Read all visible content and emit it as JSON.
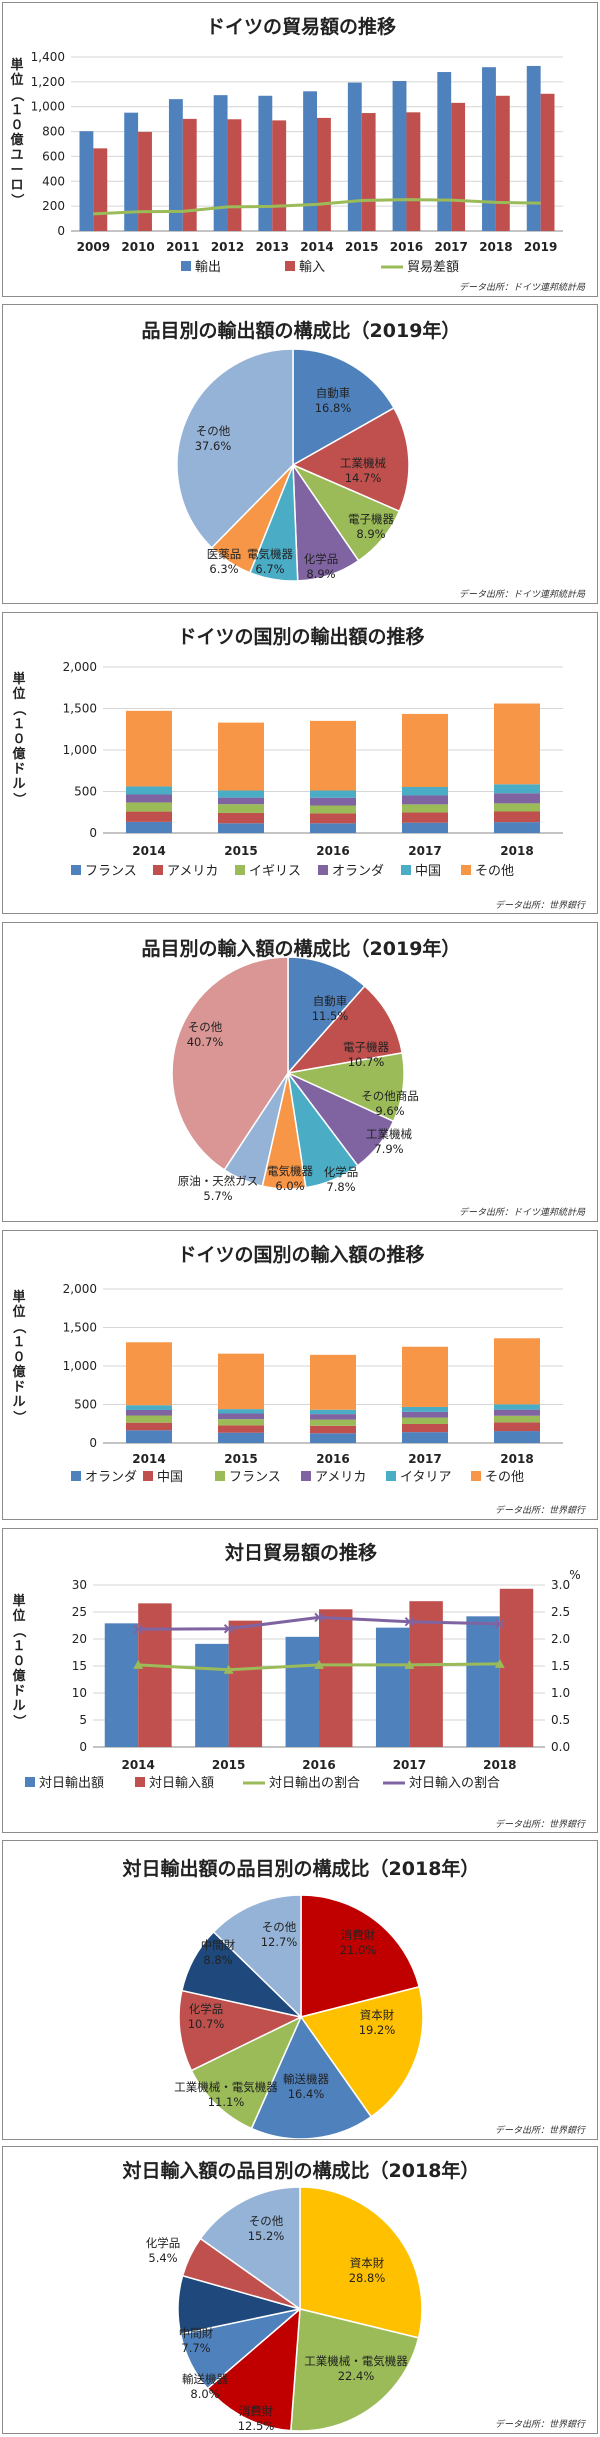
{
  "chart_data": [
    {
      "id": "c1",
      "type": "bar",
      "title": "ドイツの貿易額の推移",
      "ylabel": "単位（１０億ユーロ）",
      "source": "データ出所：ドイツ連邦統計局",
      "categories": [
        "2009",
        "2010",
        "2011",
        "2012",
        "2013",
        "2014",
        "2015",
        "2016",
        "2017",
        "2018",
        "2019"
      ],
      "ylim": [
        0,
        1400
      ],
      "yticks": [
        "0",
        "200",
        "400",
        "600",
        "800",
        "1,000",
        "1,200",
        "1,400"
      ],
      "series": [
        {
          "name": "輸出",
          "kind": "bar",
          "color": "#4f81bd",
          "values": [
            803,
            952,
            1061,
            1093,
            1088,
            1124,
            1194,
            1207,
            1279,
            1318,
            1328
          ]
        },
        {
          "name": "輸入",
          "kind": "bar",
          "color": "#c0504d",
          "values": [
            665,
            797,
            902,
            899,
            890,
            910,
            949,
            955,
            1031,
            1088,
            1104
          ]
        },
        {
          "name": "貿易差額",
          "kind": "line",
          "color": "#9bbb59",
          "values": [
            138,
            155,
            158,
            194,
            198,
            214,
            245,
            252,
            248,
            230,
            224
          ]
        }
      ],
      "grid": true,
      "legend": "bottom"
    },
    {
      "id": "c2",
      "type": "pie",
      "title": "品目別の輸出額の構成比（2019年）",
      "source": "データ出所：ドイツ連邦統計局",
      "slices": [
        {
          "name": "自動車",
          "pct": "16.8%",
          "value": 16.8,
          "color": "#4f81bd"
        },
        {
          "name": "工業機械",
          "pct": "14.7%",
          "value": 14.7,
          "color": "#c0504d"
        },
        {
          "name": "電子機器",
          "pct": "8.9%",
          "value": 8.9,
          "color": "#9bbb59"
        },
        {
          "name": "化学品",
          "pct": "8.9%",
          "value": 8.9,
          "color": "#8064a2"
        },
        {
          "name": "電気機器",
          "pct": "6.7%",
          "value": 6.7,
          "color": "#4bacc6"
        },
        {
          "name": "医薬品",
          "pct": "6.3%",
          "value": 6.3,
          "color": "#f79646"
        },
        {
          "name": "その他",
          "pct": "37.6%",
          "value": 37.6,
          "color": "#95b3d7"
        }
      ]
    },
    {
      "id": "c3",
      "type": "bar",
      "title": "ドイツの国別の輸出額の推移",
      "ylabel": "単位（１０億ドル）",
      "source": "データ出所：世界銀行",
      "categories": [
        "2014",
        "2015",
        "2016",
        "2017",
        "2018"
      ],
      "ylim": [
        0,
        2000
      ],
      "yticks": [
        "0",
        "500",
        "1,000",
        "1,500",
        "2,000"
      ],
      "series": [
        {
          "name": "フランス",
          "color": "#4f81bd",
          "values": [
            134,
            117,
            117,
            124,
            131
          ]
        },
        {
          "name": "アメリカ",
          "color": "#c0504d",
          "values": [
            124,
            125,
            119,
            124,
            128
          ]
        },
        {
          "name": "イギリス",
          "color": "#9bbb59",
          "values": [
            110,
            105,
            95,
            97,
            98
          ]
        },
        {
          "name": "オランダ",
          "color": "#8064a2",
          "values": [
            96,
            79,
            94,
            107,
            122
          ]
        },
        {
          "name": "中国",
          "color": "#4bacc6",
          "values": [
            97,
            86,
            87,
            102,
            108
          ]
        },
        {
          "name": "その他",
          "color": "#f79646",
          "values": [
            911,
            818,
            839,
            881,
            973
          ]
        }
      ],
      "grid": true,
      "legend": "bottom"
    },
    {
      "id": "c4",
      "type": "pie",
      "title": "品目別の輸入額の構成比（2019年）",
      "source": "データ出所：ドイツ連邦統計局",
      "slices": [
        {
          "name": "自動車",
          "pct": "11.5%",
          "value": 11.5,
          "color": "#4f81bd"
        },
        {
          "name": "電子機器",
          "pct": "10.7%",
          "value": 10.7,
          "color": "#c0504d"
        },
        {
          "name": "その他商品",
          "pct": "9.6%",
          "value": 9.6,
          "color": "#9bbb59"
        },
        {
          "name": "工業機械",
          "pct": "7.9%",
          "value": 7.9,
          "color": "#8064a2"
        },
        {
          "name": "化学品",
          "pct": "7.8%",
          "value": 7.8,
          "color": "#4bacc6"
        },
        {
          "name": "電気機器",
          "pct": "6.0%",
          "value": 6.0,
          "color": "#f79646"
        },
        {
          "name": "原油・天然ガス",
          "pct": "5.7%",
          "value": 5.7,
          "color": "#95b3d7"
        },
        {
          "name": "その他",
          "pct": "40.7%",
          "value": 40.7,
          "color": "#d99694"
        }
      ]
    },
    {
      "id": "c5",
      "type": "bar",
      "title": "ドイツの国別の輸入額の推移",
      "ylabel": "単位（１０億ドル）",
      "source": "データ出所：世界銀行",
      "categories": [
        "2014",
        "2015",
        "2016",
        "2017",
        "2018"
      ],
      "ylim": [
        0,
        2000
      ],
      "yticks": [
        "0",
        "500",
        "1,000",
        "1,500",
        "2,000"
      ],
      "series": [
        {
          "name": "オランダ",
          "color": "#4f81bd",
          "values": [
            165,
            134,
            126,
            141,
            155
          ]
        },
        {
          "name": "中国",
          "color": "#c0504d",
          "values": [
            99,
            96,
            98,
            106,
            113
          ]
        },
        {
          "name": "フランス",
          "color": "#9bbb59",
          "values": [
            93,
            80,
            80,
            83,
            86
          ]
        },
        {
          "name": "アメリカ",
          "color": "#8064a2",
          "values": [
            72,
            73,
            71,
            75,
            79
          ]
        },
        {
          "name": "イタリア",
          "color": "#4bacc6",
          "values": [
            62,
            57,
            57,
            63,
            69
          ]
        },
        {
          "name": "その他",
          "color": "#f79646",
          "values": [
            817,
            720,
            713,
            782,
            858
          ]
        }
      ],
      "grid": true,
      "legend": "bottom"
    },
    {
      "id": "c6",
      "type": "bar",
      "title": "対日貿易額の推移",
      "ylabel": "単位（１０億ドル）",
      "y2unit": "%",
      "source": "データ出所：世界銀行",
      "categories": [
        "2014",
        "2015",
        "2016",
        "2017",
        "2018"
      ],
      "ylim": [
        0,
        30
      ],
      "yticks": [
        "0",
        "5",
        "10",
        "15",
        "20",
        "25",
        "30"
      ],
      "y2lim": [
        0,
        3
      ],
      "y2ticks": [
        "0.0",
        "0.5",
        "1.0",
        "1.5",
        "2.0",
        "2.5",
        "3.0"
      ],
      "series": [
        {
          "name": "対日輸出額",
          "kind": "bar",
          "color": "#4f81bd",
          "values": [
            22.9,
            19.1,
            20.4,
            22.1,
            24.2
          ]
        },
        {
          "name": "対日輸入額",
          "kind": "bar",
          "color": "#c0504d",
          "values": [
            26.6,
            23.4,
            25.5,
            27.0,
            29.3
          ]
        },
        {
          "name": "対日輸出の割合",
          "kind": "line",
          "axis": "right",
          "color": "#9bbb59",
          "values": [
            1.52,
            1.43,
            1.52,
            1.52,
            1.54
          ]
        },
        {
          "name": "対日輸入の割合",
          "kind": "line",
          "axis": "right",
          "color": "#8064a2",
          "values": [
            2.18,
            2.19,
            2.4,
            2.32,
            2.28
          ]
        }
      ],
      "grid": true,
      "legend": "bottom"
    },
    {
      "id": "c7",
      "type": "pie",
      "title": "対日輸出額の品目別の構成比（2018年）",
      "source": "データ出所：世界銀行",
      "slices": [
        {
          "name": "消費財",
          "pct": "21.0%",
          "value": 21.0,
          "color": "#c00000"
        },
        {
          "name": "資本財",
          "pct": "19.2%",
          "value": 19.2,
          "color": "#ffc000"
        },
        {
          "name": "輸送機器",
          "pct": "16.4%",
          "value": 16.4,
          "color": "#4f81bd"
        },
        {
          "name": "工業機械・電気機器",
          "pct": "11.1%",
          "value": 11.1,
          "color": "#9bbb59"
        },
        {
          "name": "化学品",
          "pct": "10.7%",
          "value": 10.7,
          "color": "#c0504d"
        },
        {
          "name": "中間財",
          "pct": "8.8%",
          "value": 8.8,
          "color": "#1f497d"
        },
        {
          "name": "その他",
          "pct": "12.7%",
          "value": 12.7,
          "color": "#95b3d7"
        }
      ]
    },
    {
      "id": "c8",
      "type": "pie",
      "title": "対日輸入額の品目別の構成比（2018年）",
      "source": "データ出所：世界銀行",
      "slices": [
        {
          "name": "資本財",
          "pct": "28.8%",
          "value": 28.8,
          "color": "#ffc000"
        },
        {
          "name": "工業機械・電気機器",
          "pct": "22.4%",
          "value": 22.4,
          "color": "#9bbb59"
        },
        {
          "name": "消費財",
          "pct": "12.5%",
          "value": 12.5,
          "color": "#c00000"
        },
        {
          "name": "輸送機器",
          "pct": "8.0%",
          "value": 8.0,
          "color": "#4f81bd"
        },
        {
          "name": "中間財",
          "pct": "7.7%",
          "value": 7.7,
          "color": "#1f497d"
        },
        {
          "name": "化学品",
          "pct": "5.4%",
          "value": 5.4,
          "color": "#c0504d"
        },
        {
          "name": "その他",
          "pct": "15.2%",
          "value": 15.2,
          "color": "#95b3d7"
        }
      ]
    }
  ]
}
